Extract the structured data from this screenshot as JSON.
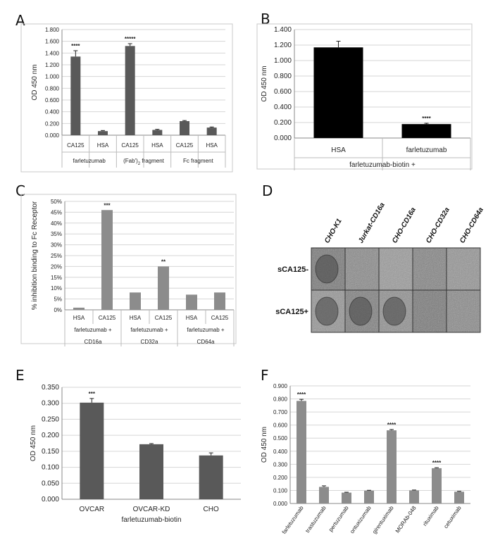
{
  "colors": {
    "bar_gray": "#595959",
    "bar_light": "#8c8c8c",
    "bar_black": "#000000"
  },
  "chart_data": [
    {
      "panel": "A",
      "type": "bar",
      "ylabel": "OD 450 nm",
      "ylim": [
        0,
        1.8
      ],
      "yticks": [
        "0.000",
        "0.200",
        "0.400",
        "0.600",
        "0.800",
        "1.000",
        "1.200",
        "1.400",
        "1.600",
        "1.800"
      ],
      "categories": [
        "CA125",
        "HSA",
        "CA125",
        "HSA",
        "CA125",
        "HSA"
      ],
      "values": [
        1.34,
        0.07,
        1.52,
        0.09,
        0.24,
        0.13
      ],
      "errors": [
        0.1,
        0.01,
        0.04,
        0.01,
        0.01,
        0.01
      ],
      "annotations": [
        "****",
        "",
        "*****",
        "",
        "",
        ""
      ],
      "groups": [
        "farletuzumab",
        "(Fab')2 fragment",
        "Fc fragment"
      ]
    },
    {
      "panel": "B",
      "type": "bar",
      "ylabel": "OD 450 nm",
      "ylim": [
        0,
        1.4
      ],
      "yticks": [
        "0.000",
        "0.200",
        "0.400",
        "0.600",
        "0.800",
        "1.000",
        "1.200",
        "1.400"
      ],
      "categories": [
        "HSA",
        "farletuzumab"
      ],
      "values": [
        1.17,
        0.18
      ],
      "errors": [
        0.08,
        0.01
      ],
      "annotations": [
        "",
        "****"
      ],
      "xlabel": "farletuzumab-biotin +"
    },
    {
      "panel": "C",
      "type": "bar",
      "ylabel": "% inhibition binding to Fc Receptor",
      "ylim": [
        0,
        50
      ],
      "yticks": [
        "0%",
        "5%",
        "10%",
        "15%",
        "20%",
        "25%",
        "30%",
        "35%",
        "40%",
        "45%",
        "50%"
      ],
      "categories": [
        "HSA",
        "CA125",
        "HSA",
        "CA125",
        "HSA",
        "CA125"
      ],
      "values": [
        1,
        46,
        8,
        20,
        7,
        8
      ],
      "annotations": [
        "",
        "***",
        "",
        "**",
        "",
        ""
      ],
      "groups": [
        "farletuzumab +",
        "farletuzumab +",
        "farletuzumab +"
      ],
      "subgroups": [
        "CD16a",
        "CD32a",
        "CD64a"
      ]
    },
    {
      "panel": "E",
      "type": "bar",
      "ylabel": "OD 450 nm",
      "ylim": [
        0,
        0.35
      ],
      "yticks": [
        "0.000",
        "0.050",
        "0.100",
        "0.150",
        "0.200",
        "0.250",
        "0.300",
        "0.350"
      ],
      "categories": [
        "OVCAR",
        "OVCAR-KD",
        "CHO"
      ],
      "values": [
        0.302,
        0.172,
        0.137
      ],
      "errors": [
        0.013,
        0.002,
        0.008
      ],
      "annotations": [
        "***",
        "",
        ""
      ],
      "xlabel": "farletuzumab-biotin"
    },
    {
      "panel": "F",
      "type": "bar",
      "ylabel": "OD 450 nm",
      "ylim": [
        0,
        0.9
      ],
      "yticks": [
        "0.000",
        "0.100",
        "0.200",
        "0.300",
        "0.400",
        "0.500",
        "0.600",
        "0.700",
        "0.800",
        "0.900"
      ],
      "categories": [
        "farletuzumab",
        "trastuzumab",
        "pertuzumab",
        "ontuxizumab",
        "girentuximab",
        "MORAb-048",
        "rituximab",
        "cetuximab"
      ],
      "values": [
        0.785,
        0.127,
        0.083,
        0.098,
        0.56,
        0.1,
        0.27,
        0.09
      ],
      "errors": [
        0.012,
        0.008,
        0.003,
        0.003,
        0.006,
        0.003,
        0.004,
        0.003
      ],
      "annotations": [
        "****",
        "",
        "",
        "",
        "****",
        "",
        "****",
        ""
      ]
    }
  ],
  "micrograph": {
    "panel": "D",
    "columns": [
      "CHO-K1",
      "Jurkat-CD16a",
      "CHO-CD16a",
      "CHO-CD32a",
      "CHO-CD64a"
    ],
    "rows": [
      "sCA125-",
      "sCA125+"
    ]
  }
}
